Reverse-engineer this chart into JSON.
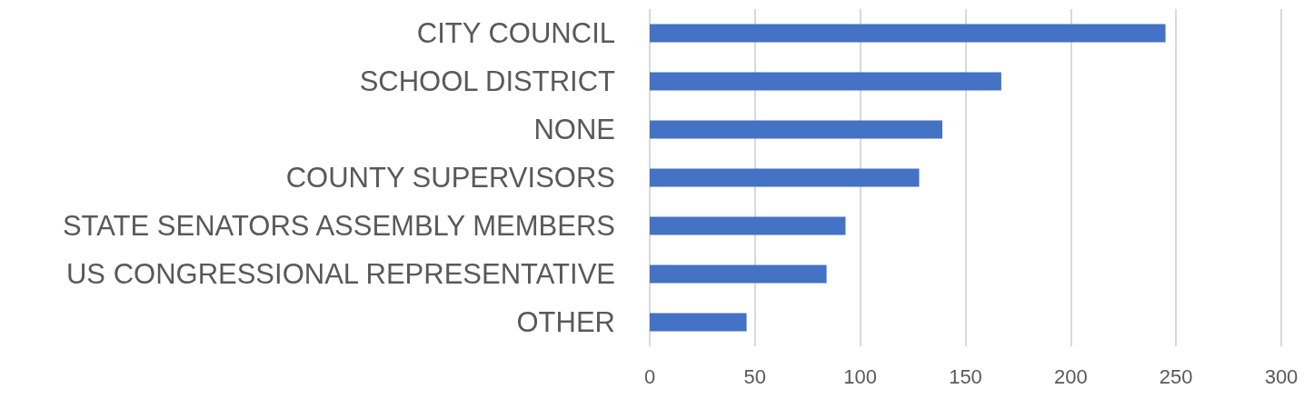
{
  "chart_data": {
    "type": "bar",
    "orientation": "horizontal",
    "categories": [
      "CITY COUNCIL",
      "SCHOOL DISTRICT",
      "NONE",
      "COUNTY SUPERVISORS",
      "STATE SENATORS ASSEMBLY MEMBERS",
      "US CONGRESSIONAL REPRESENTATIVE",
      "OTHER"
    ],
    "values": [
      245,
      167,
      139,
      128,
      93,
      84,
      46
    ],
    "color": "#4472c4",
    "xlim": [
      0,
      300
    ],
    "xticks": [
      0,
      50,
      100,
      150,
      200,
      250,
      300
    ],
    "grid": "x"
  }
}
